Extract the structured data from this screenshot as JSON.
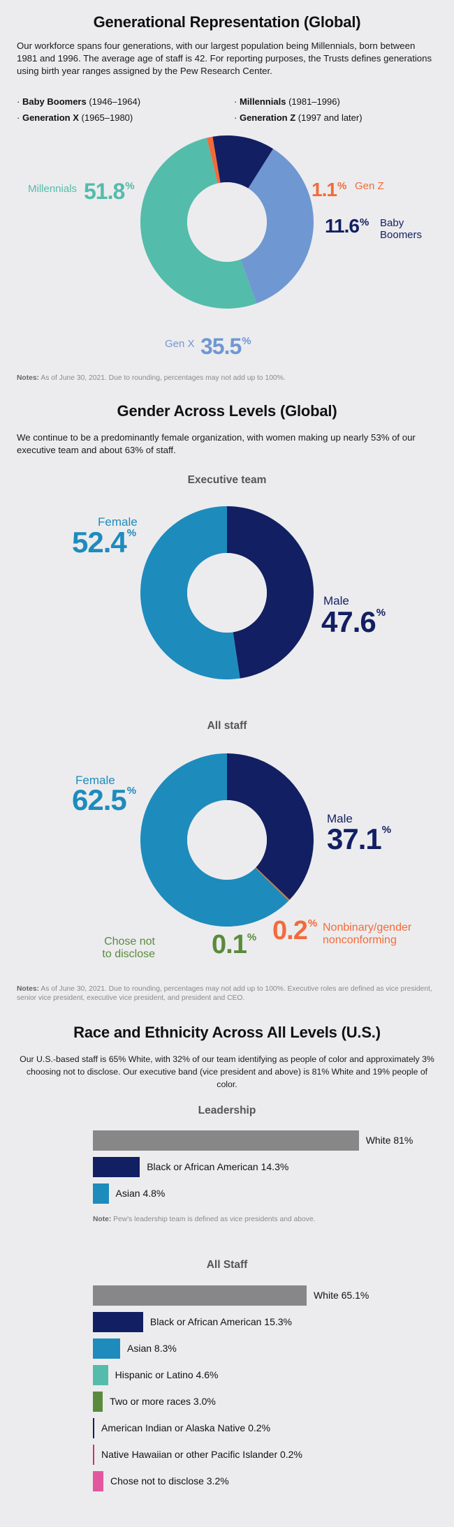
{
  "colors": {
    "teal": "#54bcaa",
    "orange": "#f26b3a",
    "navy": "#121f62",
    "lightblue": "#6f97d2",
    "blue": "#1e8bbd",
    "green": "#5a8a3c",
    "gray": "#878787",
    "crimson": "#c8385b",
    "pink": "#e2579e"
  },
  "generations": {
    "title": "Generational Representation (Global)",
    "intro": "Our workforce spans four generations, with our largest population being Millennials, born between 1981 and 1996. The average age of staff is 42. For reporting purposes, the Trusts defines generations using birth year ranges assigned by the Pew Research Center.",
    "legend": [
      {
        "bullet": "·",
        "name": "Baby Boomers",
        "range": "(1946–1964)"
      },
      {
        "bullet": "·",
        "name": "Millennials",
        "range": "(1981–1996)"
      },
      {
        "bullet": "·",
        "name": "Generation X",
        "range": "(1965–1980)"
      },
      {
        "bullet": "·",
        "name": "Generation Z",
        "range": "(1997 and later)"
      }
    ],
    "labels": {
      "millennials": {
        "name": "Millennials",
        "value": "51.8",
        "pct": "%"
      },
      "genz": {
        "name": "Gen Z",
        "value": "1.1",
        "pct": "%"
      },
      "boomers": {
        "name1": "Baby",
        "name2": "Boomers",
        "value": "11.6",
        "pct": "%"
      },
      "genx": {
        "name": "Gen X",
        "value": "35.5",
        "pct": "%"
      }
    },
    "note_label": "Notes:",
    "note": " As of June 30, 2021. Due to rounding, percentages may not add up to 100%."
  },
  "gender": {
    "title": "Gender Across Levels (Global)",
    "intro": "We continue to be a predominantly female organization, with women making up nearly 53% of our executive team and about 63% of staff.",
    "exec_title": "Executive team",
    "exec_labels": {
      "female": {
        "name": "Female",
        "value": "52.4",
        "pct": "%"
      },
      "male": {
        "name": "Male",
        "value": "47.6",
        "pct": "%"
      }
    },
    "staff_title": "All staff",
    "staff_labels": {
      "female": {
        "name": "Female",
        "value": "62.5",
        "pct": "%"
      },
      "male": {
        "name": "Male",
        "value": "37.1",
        "pct": "%"
      },
      "nonbinary": {
        "name1": "Nonbinary/gender",
        "name2": "nonconforming",
        "value": "0.2",
        "pct": "%"
      },
      "undisclosed": {
        "name1": "Chose not",
        "name2": "to disclose",
        "value": "0.1",
        "pct": "%"
      }
    },
    "note_label": "Notes:",
    "note_line1": " As of June 30, 2021. Due to rounding, percentages may not add up to 100%. Executive roles are defined as vice president,",
    "note_line2": "senior vice president, executive vice president, and president and CEO."
  },
  "race": {
    "title": "Race and Ethnicity Across All Levels (U.S.)",
    "intro_line1": "Our U.S.-based staff is 65% White, with 32% of our team identifying as people of color and approximately 3%",
    "intro_line2": "choosing not to disclose. Our executive band (vice president and above) is 81% White and 19% people of color.",
    "leadership_title": "Leadership",
    "leadership_note_label": "Note:",
    "leadership_note": " Pew's leadership team is defined as vice presidents and above.",
    "allstaff_title": "All Staff"
  },
  "chart_data": [
    {
      "type": "pie",
      "title": "Generational Representation (Global)",
      "categories": [
        "Millennials",
        "Gen Z",
        "Baby Boomers",
        "Gen X"
      ],
      "values": [
        51.8,
        1.1,
        11.6,
        35.5
      ],
      "colors": [
        "#54bcaa",
        "#f26b3a",
        "#121f62",
        "#6f97d2"
      ]
    },
    {
      "type": "pie",
      "title": "Executive team",
      "categories": [
        "Male",
        "Female"
      ],
      "values": [
        47.6,
        52.4
      ],
      "colors": [
        "#121f62",
        "#1e8bbd"
      ]
    },
    {
      "type": "pie",
      "title": "All staff",
      "categories": [
        "Male",
        "Nonbinary/gender nonconforming",
        "Chose not to disclose",
        "Female"
      ],
      "values": [
        37.1,
        0.2,
        0.1,
        62.5
      ],
      "colors": [
        "#121f62",
        "#f26b3a",
        "#5a8a3c",
        "#1e8bbd"
      ]
    },
    {
      "type": "bar",
      "title": "Leadership",
      "xlim": [
        0,
        100
      ],
      "categories": [
        "White",
        "Black or African American",
        "Asian"
      ],
      "values": [
        81,
        14.3,
        4.8
      ],
      "value_labels": [
        "81%",
        "14.3%",
        "4.8%"
      ],
      "colors": [
        "#878787",
        "#121f62",
        "#1e8bbd"
      ]
    },
    {
      "type": "bar",
      "title": "All Staff",
      "xlim": [
        0,
        100
      ],
      "categories": [
        "White",
        "Black or African American",
        "Asian",
        "Hispanic or Latino",
        "Two or more races",
        "American Indian or Alaska Native",
        "Native Hawaiian or other Pacific Islander",
        "Chose not to disclose"
      ],
      "values": [
        65.1,
        15.3,
        8.3,
        4.6,
        3.0,
        0.2,
        0.2,
        3.2
      ],
      "value_labels": [
        "65.1%",
        "15.3%",
        "8.3%",
        "4.6%",
        "3.0%",
        "0.2%",
        "0.2%",
        "3.2%"
      ],
      "colors": [
        "#878787",
        "#121f62",
        "#1e8bbd",
        "#54bcaa",
        "#5a8a3c",
        "#121f62",
        "#c8385b",
        "#e2579e"
      ]
    }
  ]
}
